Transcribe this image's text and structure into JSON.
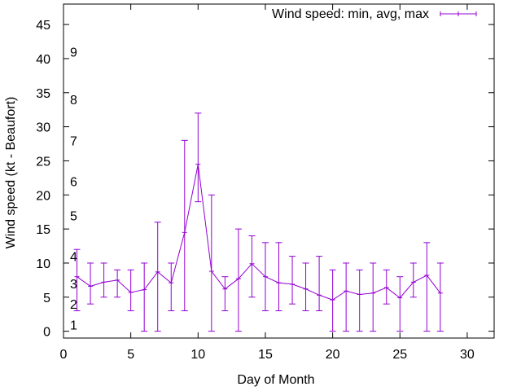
{
  "chart_data": {
    "type": "line",
    "title": "",
    "xlabel": "Day of Month",
    "ylabel": "Wind speed (kt - Beaufort)",
    "xlim": [
      0,
      32
    ],
    "ylim": [
      -1,
      48
    ],
    "xticks": [
      0,
      5,
      10,
      15,
      20,
      25,
      30
    ],
    "yticks": [
      0,
      5,
      10,
      15,
      20,
      25,
      30,
      35,
      40,
      45
    ],
    "beaufort_labels": [
      {
        "label": "1",
        "y": 1
      },
      {
        "label": "2",
        "y": 4
      },
      {
        "label": "3",
        "y": 7
      },
      {
        "label": "4",
        "y": 11
      },
      {
        "label": "5",
        "y": 17
      },
      {
        "label": "6",
        "y": 22
      },
      {
        "label": "7",
        "y": 28
      },
      {
        "label": "8",
        "y": 34
      },
      {
        "label": "9",
        "y": 41
      }
    ],
    "color": "#9400d3",
    "series": [
      {
        "name": "Wind speed: min, avg, max",
        "x": [
          1,
          2,
          3,
          4,
          5,
          6,
          7,
          8,
          9,
          10,
          11,
          12,
          13,
          14,
          15,
          16,
          17,
          18,
          19,
          20,
          21,
          22,
          23,
          24,
          25,
          26,
          27,
          28
        ],
        "avg": [
          8,
          6.6,
          7.2,
          7.5,
          5.7,
          6.1,
          8.7,
          7.1,
          14.5,
          24.5,
          8.8,
          6.2,
          7.7,
          9.9,
          8,
          7.1,
          6.9,
          6.2,
          5.3,
          4.6,
          5.9,
          5.4,
          5.6,
          6.4,
          4.9,
          7.2,
          8.2,
          5.6
        ],
        "min": [
          3,
          4,
          5,
          5,
          3,
          0,
          0,
          3,
          3,
          19,
          0,
          3,
          0,
          5,
          3,
          3,
          4,
          3,
          3,
          0,
          0,
          0,
          0,
          4,
          0,
          5,
          0,
          0
        ],
        "max": [
          12,
          10,
          10,
          9,
          9,
          10,
          16,
          10,
          28,
          32,
          20,
          8,
          15,
          14,
          13,
          13,
          11,
          10,
          11,
          9,
          10,
          9,
          10,
          9,
          8,
          10,
          13,
          10
        ]
      }
    ]
  }
}
